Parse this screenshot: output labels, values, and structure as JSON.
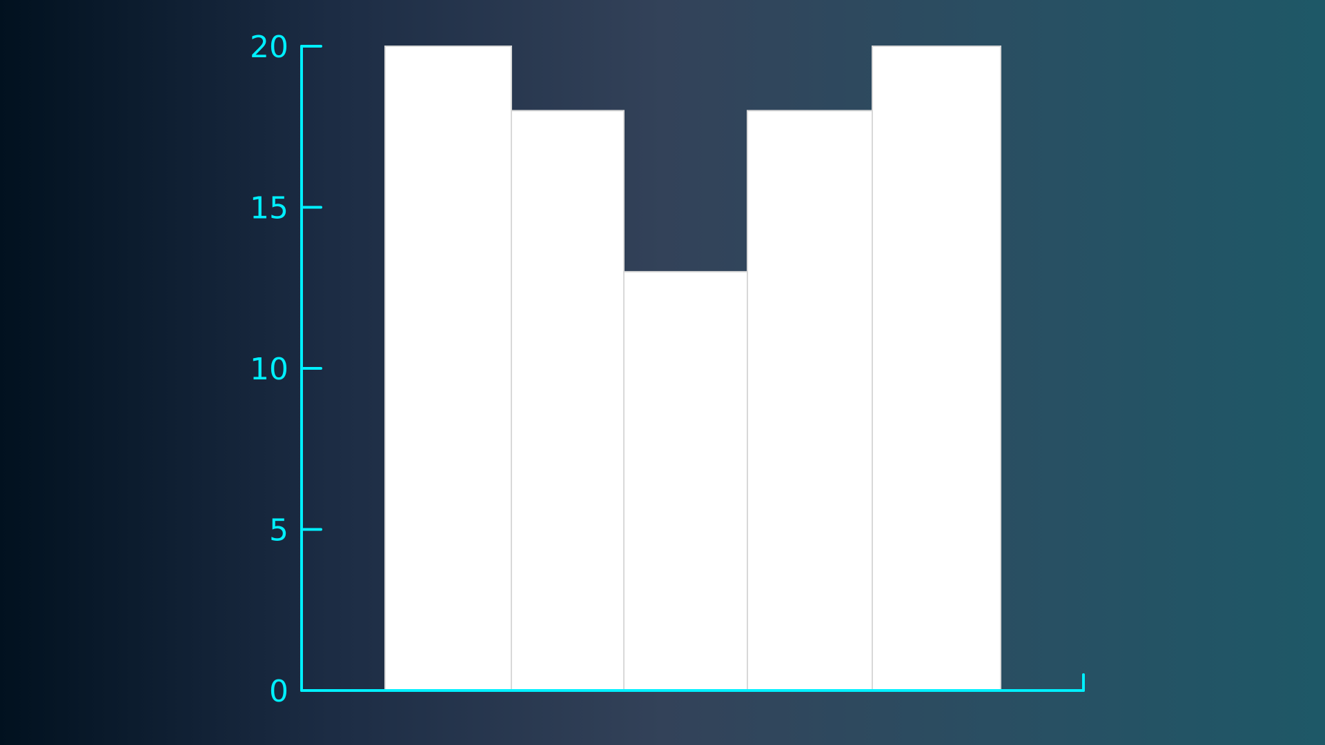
{
  "chart_data": {
    "type": "bar",
    "categories": [
      "",
      "",
      "",
      "",
      ""
    ],
    "values": [
      20,
      18,
      13,
      18,
      20
    ],
    "ylim": [
      0,
      20
    ],
    "yticks": [
      "0",
      "5",
      "10",
      "15",
      "20"
    ],
    "grid": false,
    "colors": {
      "axis": "#00f0ff",
      "bar_fill": "#ffffff",
      "bar_stroke": "#d8d8d8"
    }
  }
}
